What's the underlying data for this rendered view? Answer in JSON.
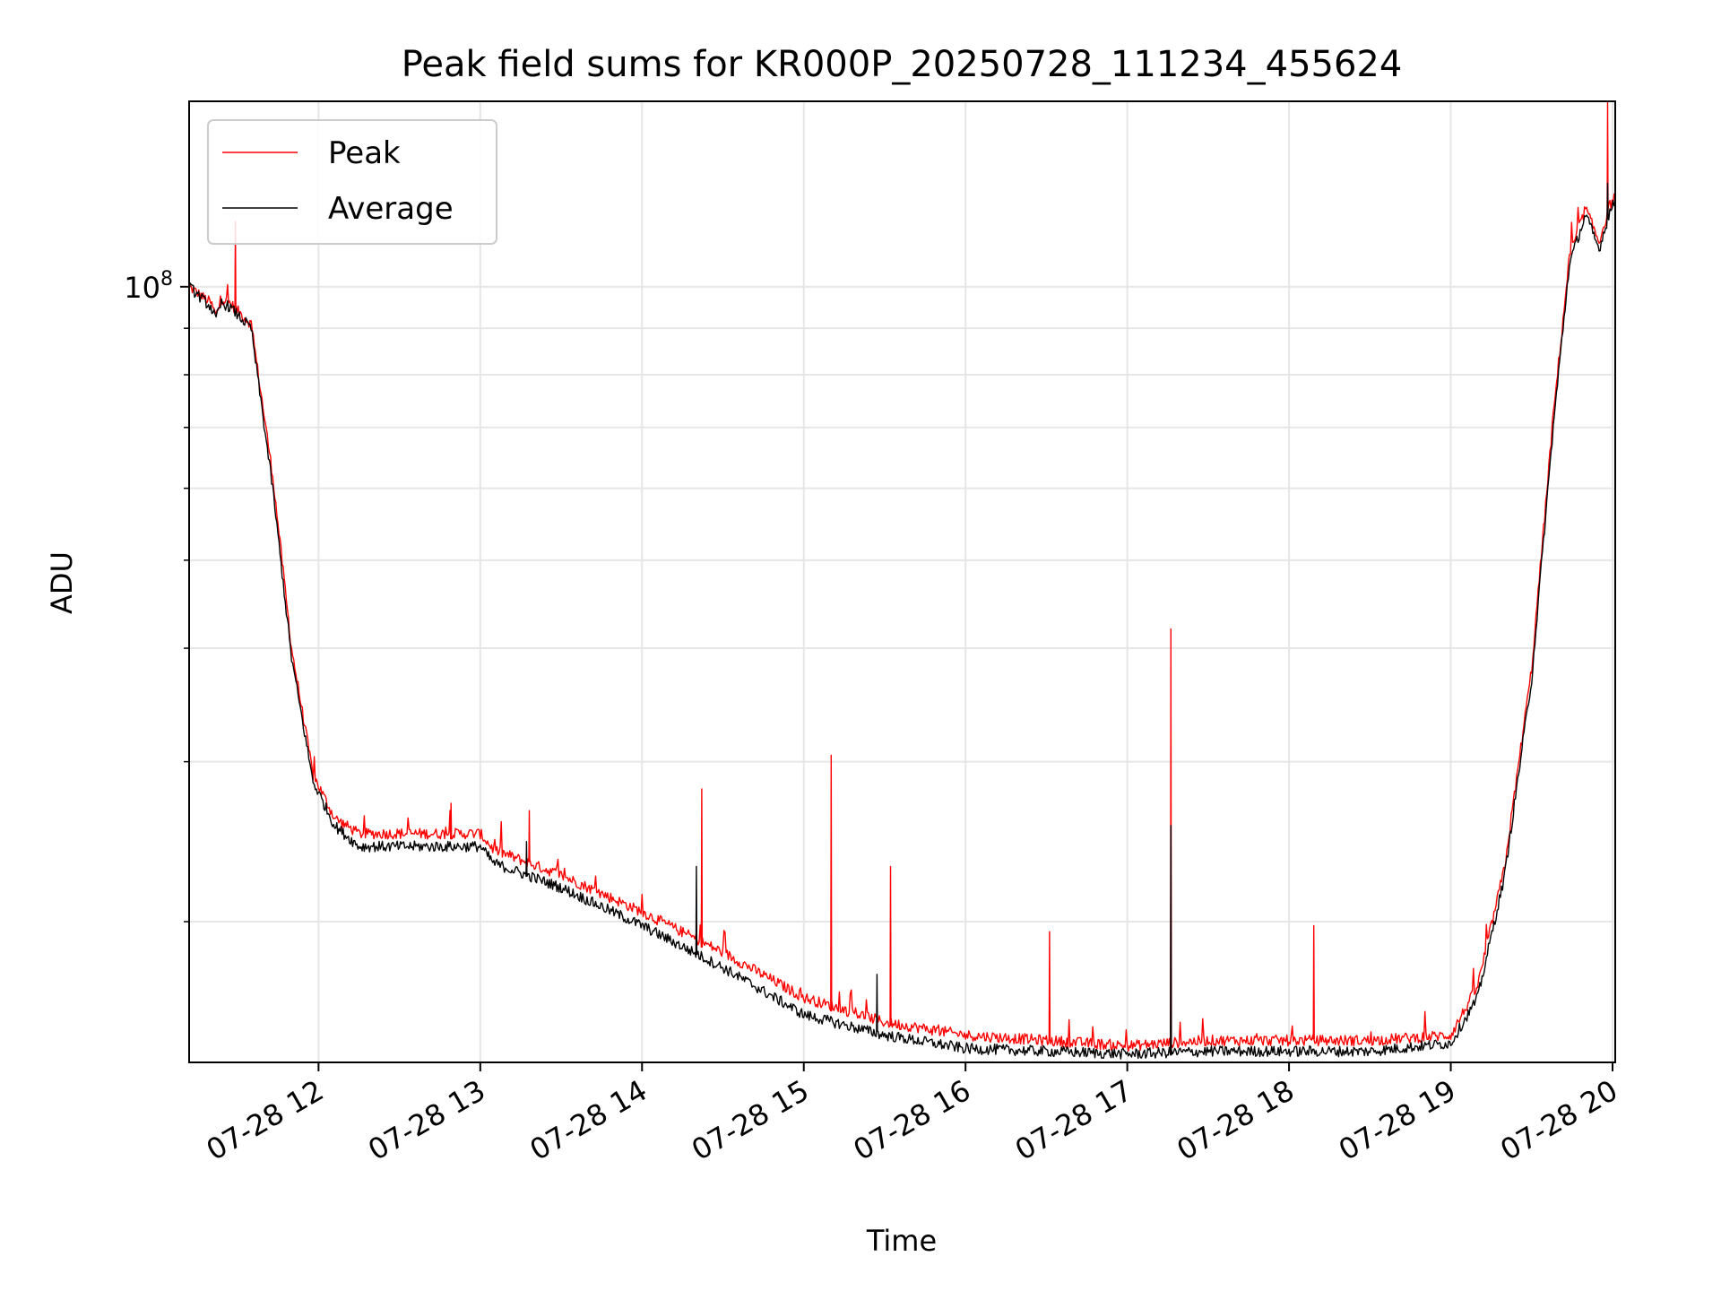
{
  "chart_data": {
    "type": "line",
    "title": "Peak field sums for KR000P_20250728_111234_455624",
    "xlabel": "Time",
    "ylabel": "ADU",
    "x_axis": {
      "type": "datetime",
      "range": [
        "2025-07-28 11:12",
        "2025-07-28 20:01"
      ],
      "tick_labels": [
        "07-28 12",
        "07-28 13",
        "07-28 14",
        "07-28 15",
        "07-28 16",
        "07-28 17",
        "07-28 18",
        "07-28 19",
        "07-28 20"
      ],
      "tick_times": [
        "2025-07-28 12:00",
        "2025-07-28 13:00",
        "2025-07-28 14:00",
        "2025-07-28 15:00",
        "2025-07-28 16:00",
        "2025-07-28 17:00",
        "2025-07-28 18:00",
        "2025-07-28 19:00",
        "2025-07-28 20:00"
      ],
      "tick_rotation_deg": 30
    },
    "y_axis": {
      "scale": "log",
      "range": [
        14000000,
        160000000
      ],
      "major_ticks": [
        100000000
      ],
      "major_tick_labels": [
        "10^8"
      ],
      "minor_ticks": [
        20000000,
        30000000,
        40000000,
        50000000,
        60000000,
        70000000,
        80000000,
        90000000
      ]
    },
    "grid": true,
    "legend": {
      "placement": "upper-left",
      "entries": [
        "Peak",
        "Average"
      ]
    },
    "colors": {
      "Peak": "#ff0000",
      "Average": "#000000"
    },
    "series": [
      {
        "name": "Peak",
        "color": "#ff0000",
        "x": [
          "2025-07-28 11:12",
          "2025-07-28 11:20",
          "2025-07-28 11:22",
          "2025-07-28 11:24",
          "2025-07-28 11:27",
          "2025-07-28 11:35",
          "2025-07-28 11:43",
          "2025-07-28 11:50",
          "2025-07-28 11:58",
          "2025-07-28 12:06",
          "2025-07-28 12:15",
          "2025-07-28 12:30",
          "2025-07-28 13:00",
          "2025-07-28 13:05",
          "2025-07-28 13:30",
          "2025-07-28 14:00",
          "2025-07-28 14:30",
          "2025-07-28 15:00",
          "2025-07-28 15:30",
          "2025-07-28 16:00",
          "2025-07-28 16:30",
          "2025-07-28 17:00",
          "2025-07-28 17:30",
          "2025-07-28 18:00",
          "2025-07-28 18:30",
          "2025-07-28 19:00",
          "2025-07-28 19:10",
          "2025-07-28 19:20",
          "2025-07-28 19:30",
          "2025-07-28 19:38",
          "2025-07-28 19:44",
          "2025-07-28 19:50",
          "2025-07-28 19:55",
          "2025-07-28 19:59",
          "2025-07-28 20:01"
        ],
        "y": [
          100000000,
          96000000,
          93000000,
          97000000,
          96000000,
          91000000,
          62000000,
          40000000,
          29000000,
          26000000,
          25000000,
          25000000,
          25000000,
          24000000,
          22500000,
          20500000,
          18500000,
          16500000,
          15500000,
          15000000,
          14800000,
          14600000,
          14800000,
          14800000,
          14800000,
          15000000,
          17000000,
          23000000,
          38000000,
          72000000,
          108000000,
          122000000,
          112000000,
          123000000,
          126000000
        ],
        "spikes": [
          {
            "x": "2025-07-28 11:29",
            "y": 118000000
          },
          {
            "x": "2025-07-28 12:49",
            "y": 27000000
          },
          {
            "x": "2025-07-28 13:18",
            "y": 26500000
          },
          {
            "x": "2025-07-28 14:22",
            "y": 28000000
          },
          {
            "x": "2025-07-28 15:10",
            "y": 30500000
          },
          {
            "x": "2025-07-28 15:32",
            "y": 23000000
          },
          {
            "x": "2025-07-28 16:31",
            "y": 19500000
          },
          {
            "x": "2025-07-28 17:16",
            "y": 42000000
          },
          {
            "x": "2025-07-28 18:09",
            "y": 19800000
          },
          {
            "x": "2025-07-28 19:58",
            "y": 160000000
          }
        ]
      },
      {
        "name": "Average",
        "color": "#000000",
        "x": [
          "2025-07-28 11:12",
          "2025-07-28 11:20",
          "2025-07-28 11:22",
          "2025-07-28 11:24",
          "2025-07-28 11:27",
          "2025-07-28 11:35",
          "2025-07-28 11:43",
          "2025-07-28 11:50",
          "2025-07-28 11:58",
          "2025-07-28 12:06",
          "2025-07-28 12:15",
          "2025-07-28 12:30",
          "2025-07-28 13:00",
          "2025-07-28 13:05",
          "2025-07-28 13:30",
          "2025-07-28 14:00",
          "2025-07-28 14:30",
          "2025-07-28 15:00",
          "2025-07-28 15:30",
          "2025-07-28 16:00",
          "2025-07-28 16:30",
          "2025-07-28 17:00",
          "2025-07-28 17:30",
          "2025-07-28 18:00",
          "2025-07-28 18:30",
          "2025-07-28 19:00",
          "2025-07-28 19:10",
          "2025-07-28 19:20",
          "2025-07-28 19:30",
          "2025-07-28 19:38",
          "2025-07-28 19:44",
          "2025-07-28 19:50",
          "2025-07-28 19:55",
          "2025-07-28 19:59",
          "2025-07-28 20:01"
        ],
        "y": [
          100000000,
          95000000,
          92000000,
          96000000,
          95000000,
          90000000,
          60000000,
          39000000,
          28500000,
          25500000,
          24200000,
          24200000,
          24200000,
          23200000,
          21800000,
          19800000,
          17800000,
          15800000,
          15000000,
          14500000,
          14400000,
          14300000,
          14400000,
          14400000,
          14400000,
          14700000,
          16500000,
          22500000,
          37000000,
          70000000,
          106000000,
          120000000,
          110000000,
          121000000,
          124000000
        ],
        "spikes": [
          {
            "x": "2025-07-28 13:17",
            "y": 24500000
          },
          {
            "x": "2025-07-28 14:20",
            "y": 23000000
          },
          {
            "x": "2025-07-28 15:27",
            "y": 17500000
          },
          {
            "x": "2025-07-28 17:16",
            "y": 25500000
          },
          {
            "x": "2025-07-28 19:58",
            "y": 130000000
          }
        ]
      }
    ]
  }
}
